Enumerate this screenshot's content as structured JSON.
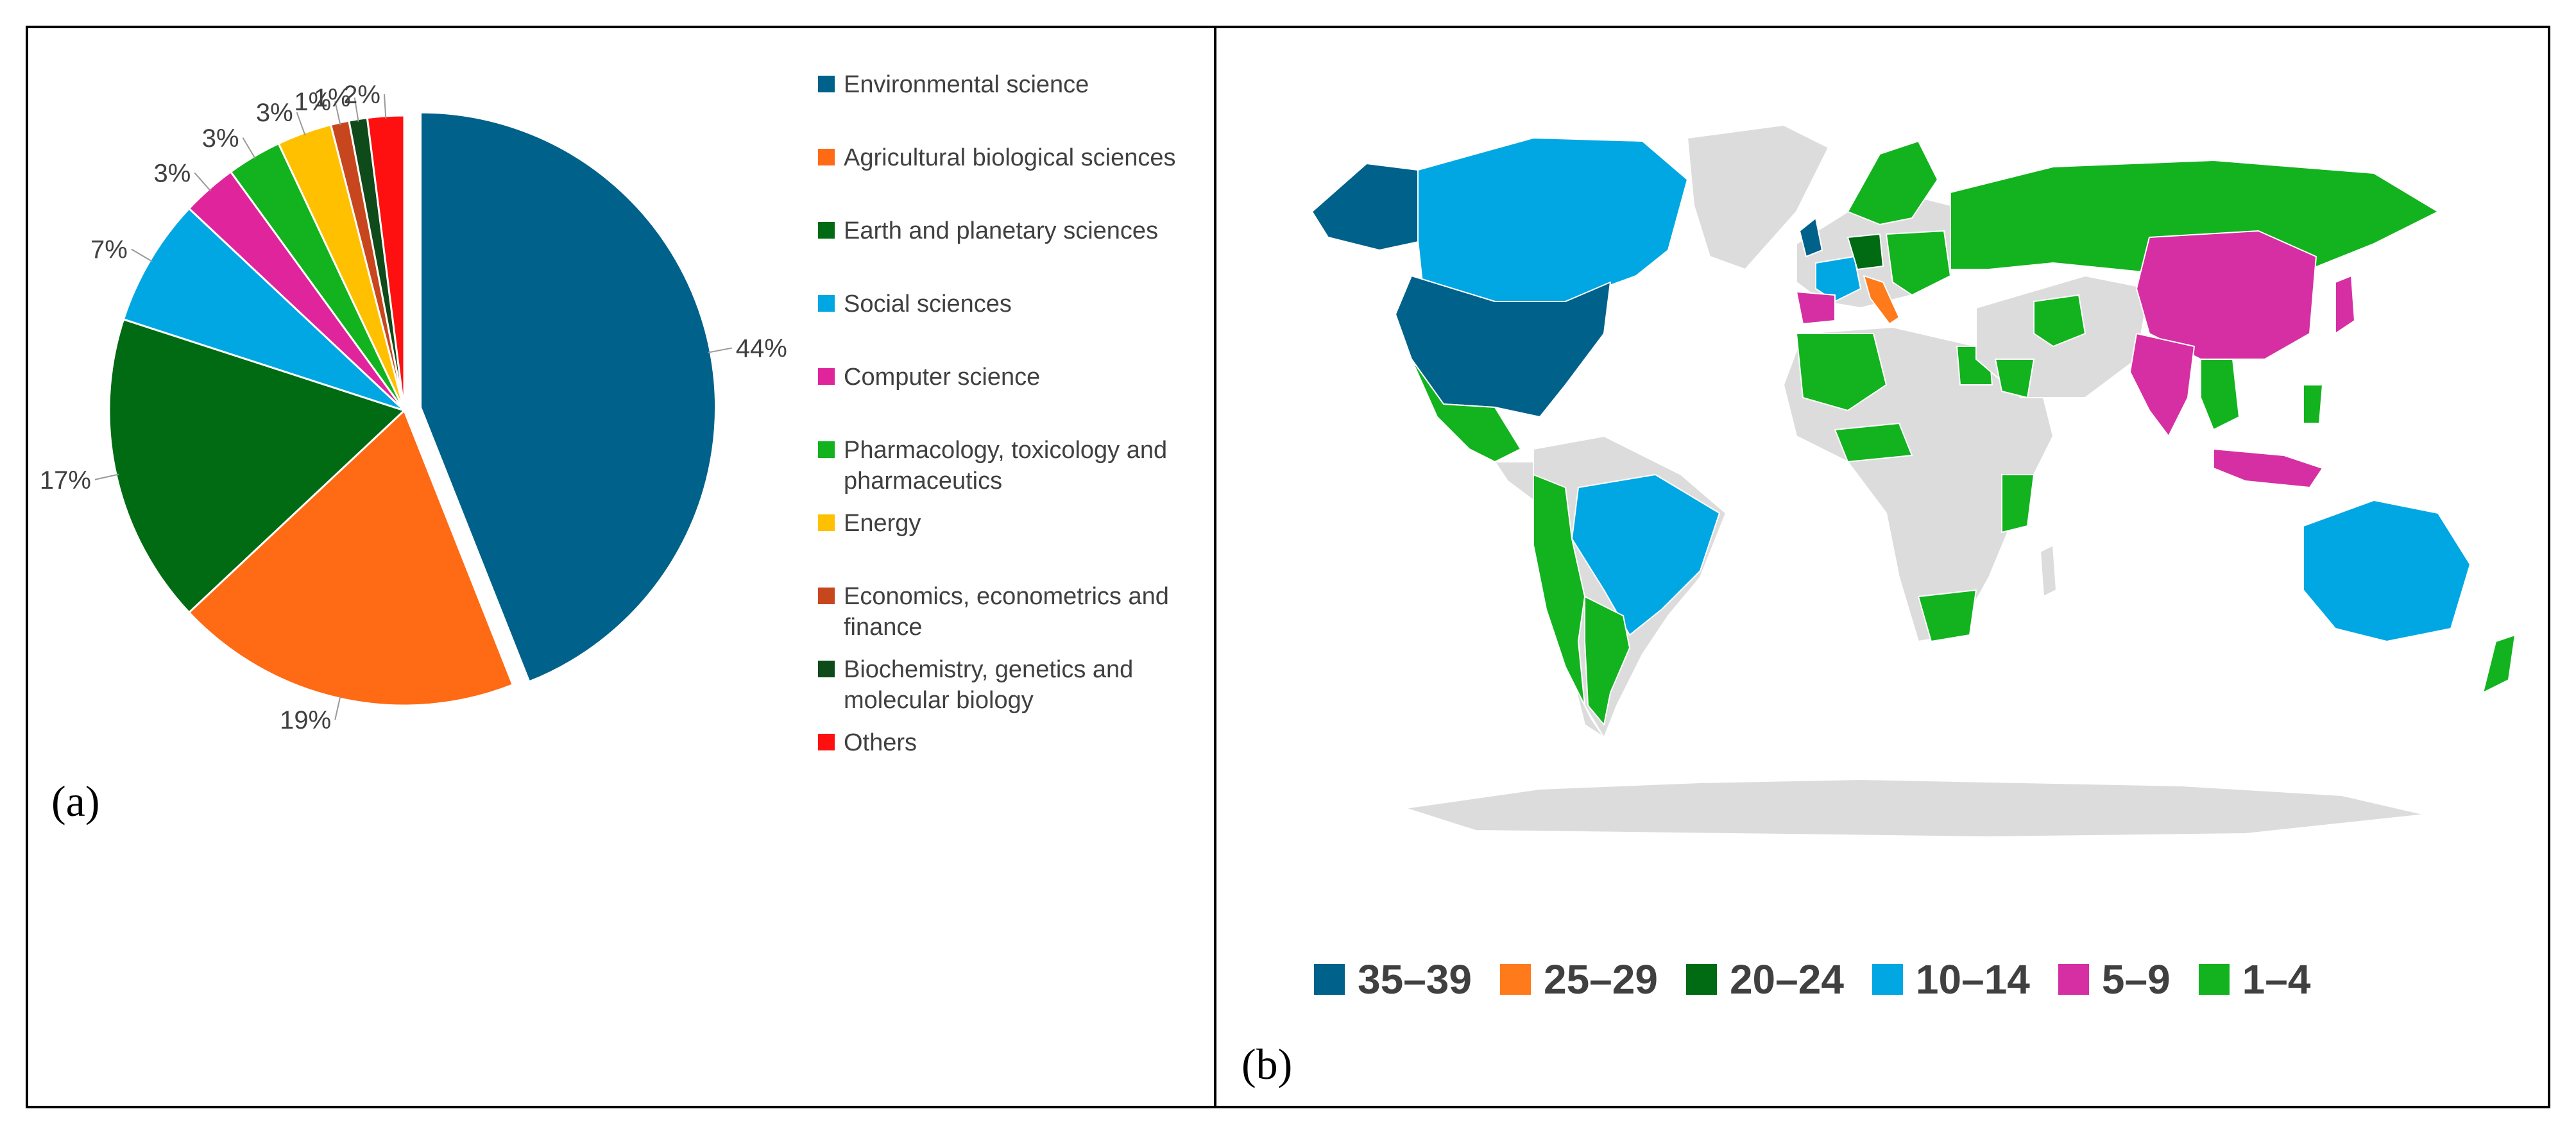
{
  "panel_a_label": "(a)",
  "panel_b_label": "(b)",
  "chart_data": [
    {
      "type": "pie",
      "slices": [
        {
          "label": "Environmental science",
          "value": 44,
          "data_label": "44%",
          "color": "#00618A"
        },
        {
          "label": "Agricultural biological sciences",
          "value": 19,
          "data_label": "19%",
          "color": "#FF6A14"
        },
        {
          "label": "Earth and planetary sciences",
          "value": 17,
          "data_label": "17%",
          "color": "#006B12"
        },
        {
          "label": "Social sciences",
          "value": 7,
          "data_label": "7%",
          "color": "#00A7E3"
        },
        {
          "label": "Computer science",
          "value": 3,
          "data_label": "3%",
          "color": "#E0249B"
        },
        {
          "label": "Pharmacology, toxicology and pharmaceutics",
          "value": 3,
          "data_label": "3%",
          "color": "#12B31E"
        },
        {
          "label": "Energy",
          "value": 3,
          "data_label": "3%",
          "color": "#FFC000"
        },
        {
          "label": "Economics, econometrics and finance",
          "value": 1,
          "data_label": "1%",
          "color": "#C8461E"
        },
        {
          "label": "Biochemistry, genetics and molecular biology",
          "value": 1,
          "data_label": "1%",
          "color": "#0F4A1A"
        },
        {
          "label": "Others",
          "value": 2,
          "data_label": "2%",
          "color": "#FF1010"
        }
      ],
      "legend_position": "right",
      "exploded_slice": "Environmental science"
    },
    {
      "type": "choropleth-map",
      "legend_position": "bottom",
      "bins": [
        {
          "label": "35–39",
          "color": "#00618A"
        },
        {
          "label": "25–29",
          "color": "#FF7A1A"
        },
        {
          "label": "20–24",
          "color": "#006B12"
        },
        {
          "label": "10–14",
          "color": "#00A7E3"
        },
        {
          "label": "5–9",
          "color": "#D62FA3"
        },
        {
          "label": "1–4",
          "color": "#12B31E"
        }
      ],
      "no_data_color": "#DCDCDC"
    }
  ]
}
